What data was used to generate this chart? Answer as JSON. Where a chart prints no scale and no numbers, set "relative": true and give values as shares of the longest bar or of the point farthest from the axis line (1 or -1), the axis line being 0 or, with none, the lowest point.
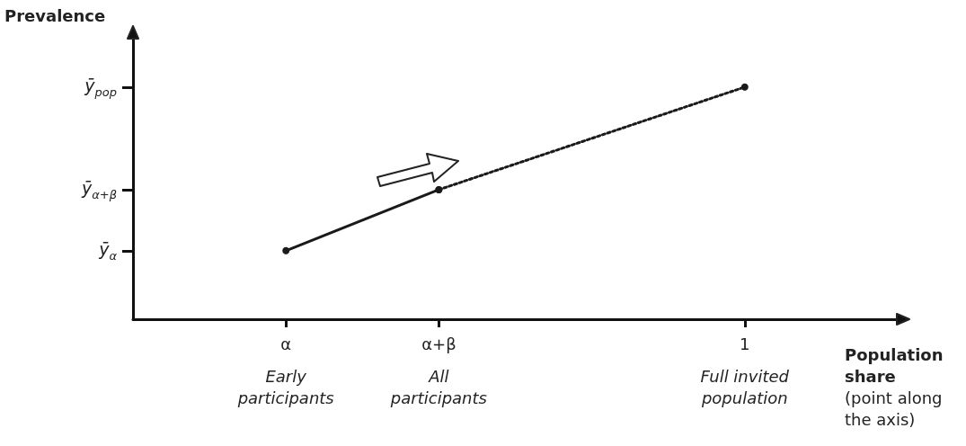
{
  "chart_data": {
    "type": "line",
    "relative": true,
    "ylabel": "Prevalence",
    "xlabel": "Population share",
    "categories": [
      null,
      "α",
      "α+β",
      null,
      "1",
      null
    ],
    "marker": "circle",
    "grid": false,
    "series": [
      {
        "color": "#1a1a1a",
        "x": [
          "α",
          "α+β"
        ],
        "values": [
          0.295,
          0.558
        ],
        "line_style": "solid"
      },
      {
        "color": "#1a1a1a",
        "x": [
          "α+β",
          "1"
        ],
        "values": [
          0.558,
          1
        ],
        "line_style": "dotted"
      }
    ],
    "annotations": [
      "ȳ$_{α}$",
      "ȳ$_{α+β}$",
      "ȳ$_{pop}$",
      "Early participants",
      "All participants",
      "Full invited population",
      "(point along the axis)"
    ]
  }
}
